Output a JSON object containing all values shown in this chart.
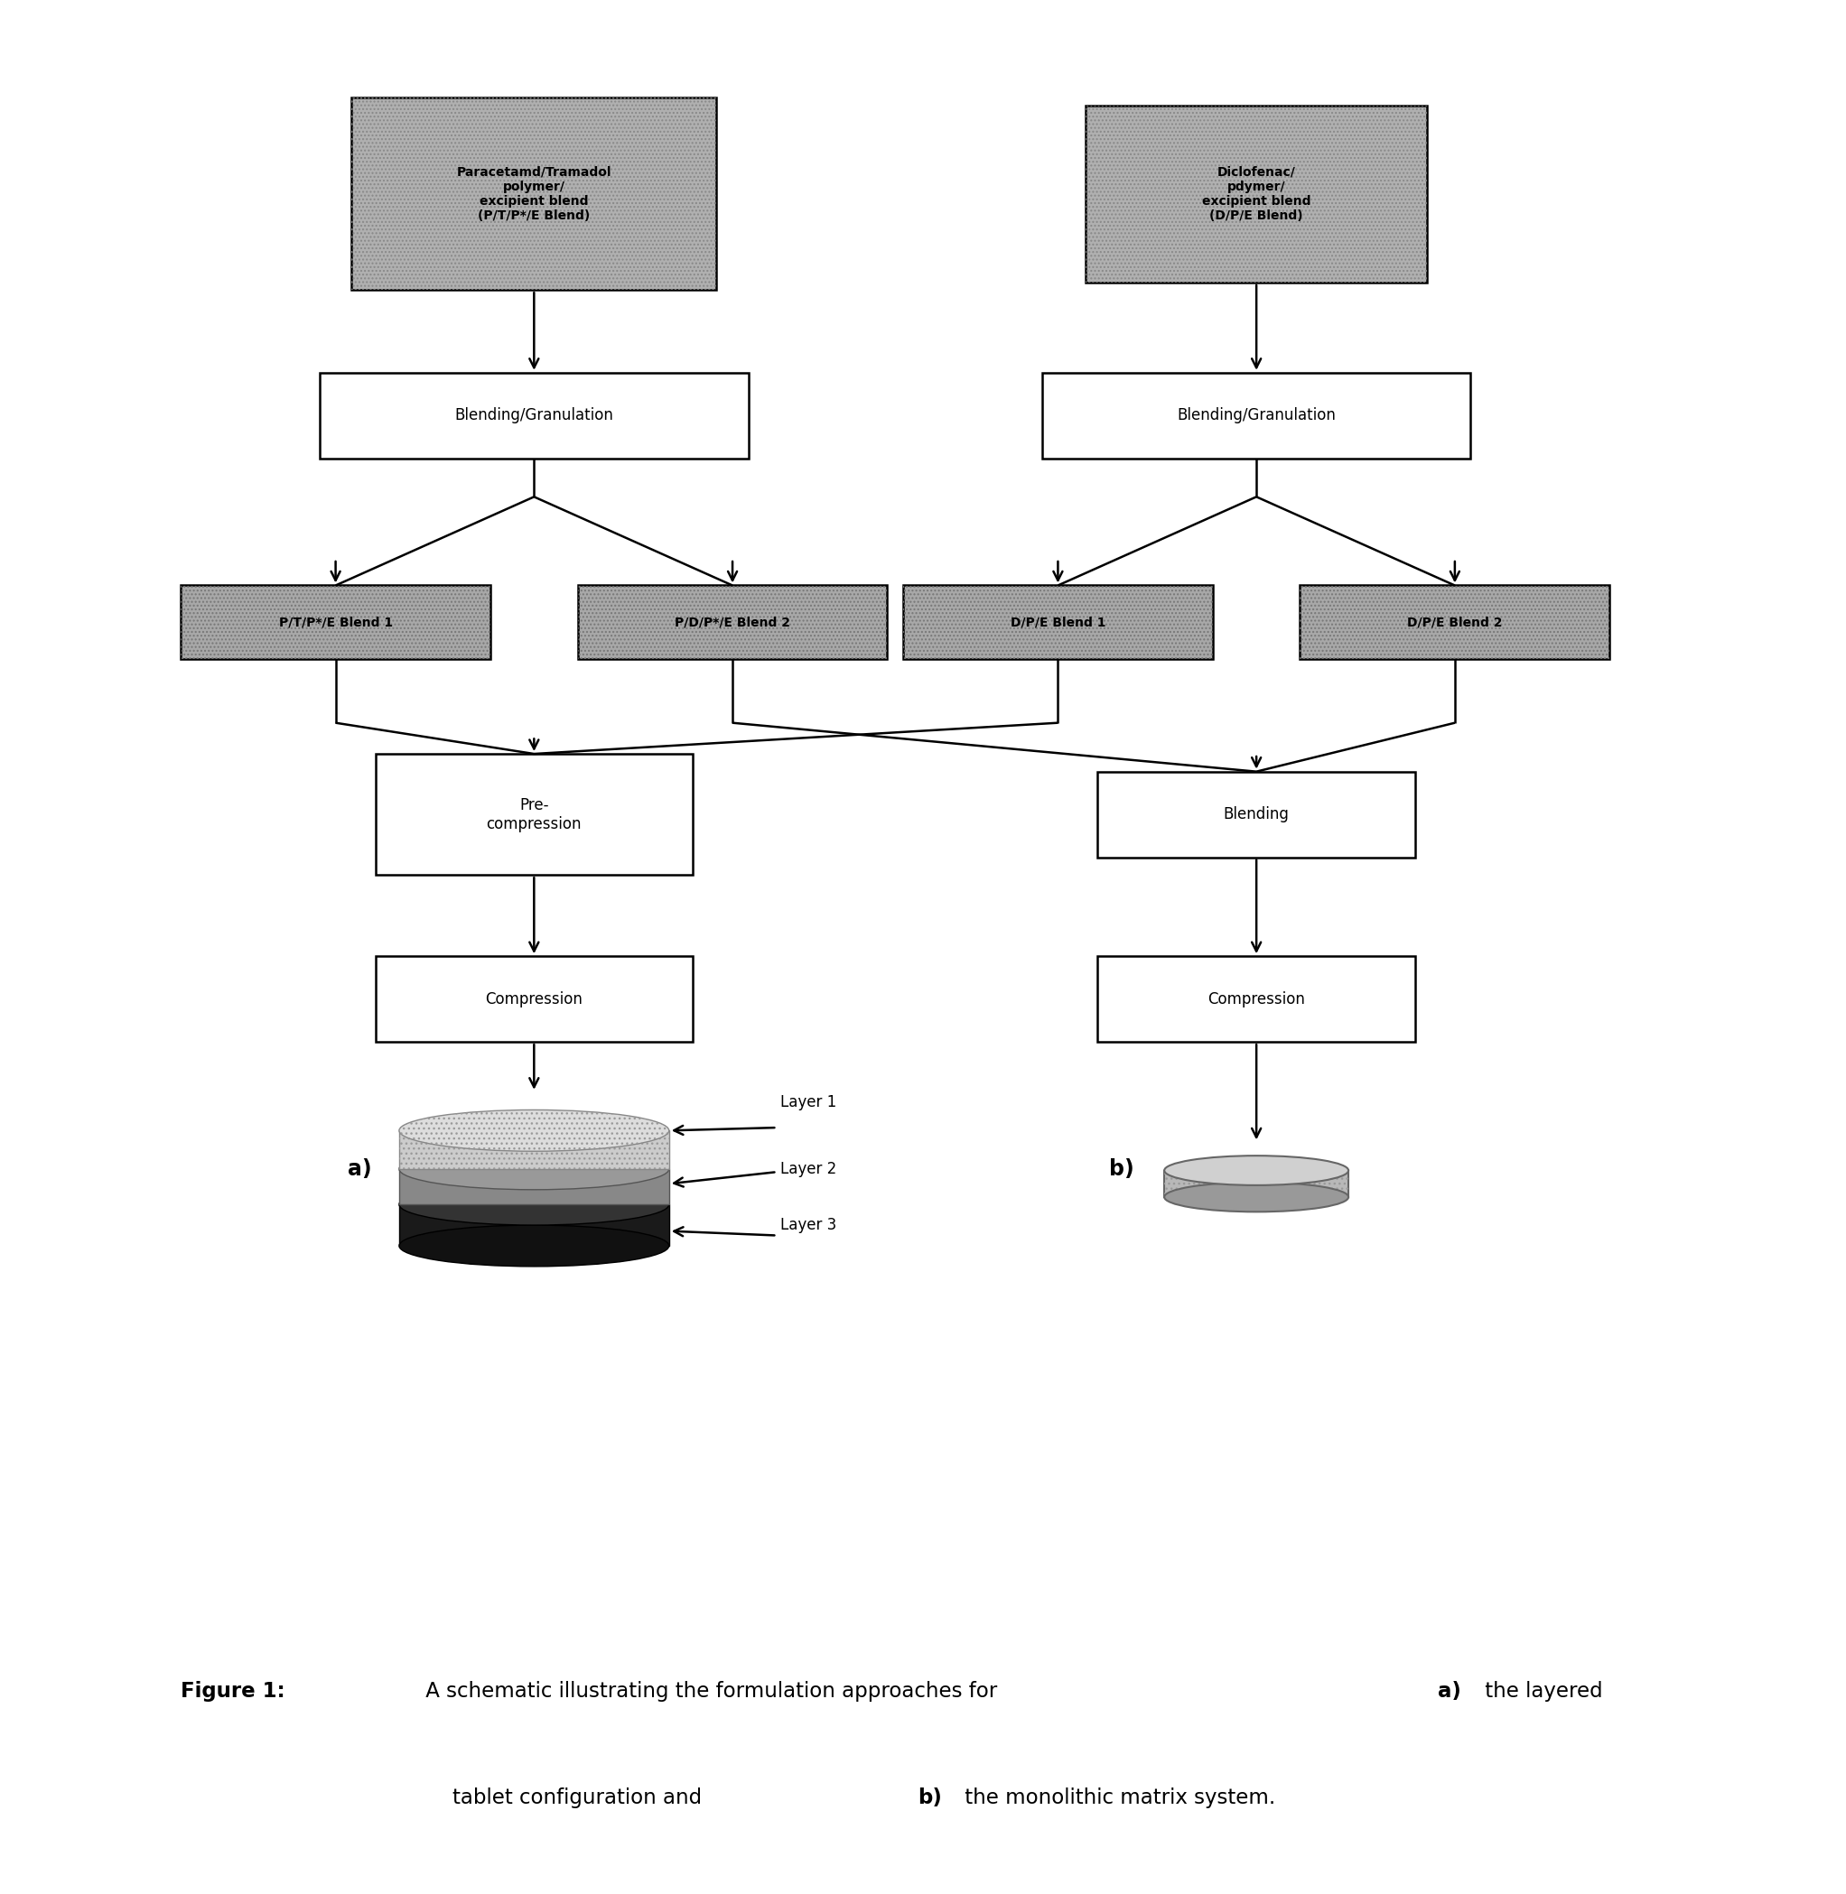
{
  "fig_width": 20.44,
  "fig_height": 20.98,
  "background_color": "#ffffff",
  "left_top_text": "Paracetamd/Tramadol\npolymer/\nexcipient blend\n(P/T/P*/E Blend)",
  "right_top_text": "Diclofenac/\npdymer/\nexcipient blend\n(D/P/E Blend)",
  "blend_gran": "Blending/Granulation",
  "left_blend1": "P/T/P*/E Blend 1",
  "left_blend2": "P/D/P*/E Blend 2",
  "right_blend1": "D/P/E Blend 1",
  "right_blend2": "D/P/E Blend 2",
  "pre_compression": "Pre-\ncompression",
  "blending_text": "Blending",
  "compression": "Compression",
  "layer1": "Layer 1",
  "layer2": "Layer 2",
  "layer3": "Layer 3",
  "label_a": "a)",
  "label_b": "b)",
  "caption_fig_bold": "Figure 1:",
  "caption_normal": " A schematic illustrating the formulation approaches for ",
  "caption_a_bold": "a)",
  "caption_after_a": " the layered",
  "caption_line2_pre": "tablet configuration and ",
  "caption_b_bold": "b)",
  "caption_after_b": " the monolithic matrix system."
}
